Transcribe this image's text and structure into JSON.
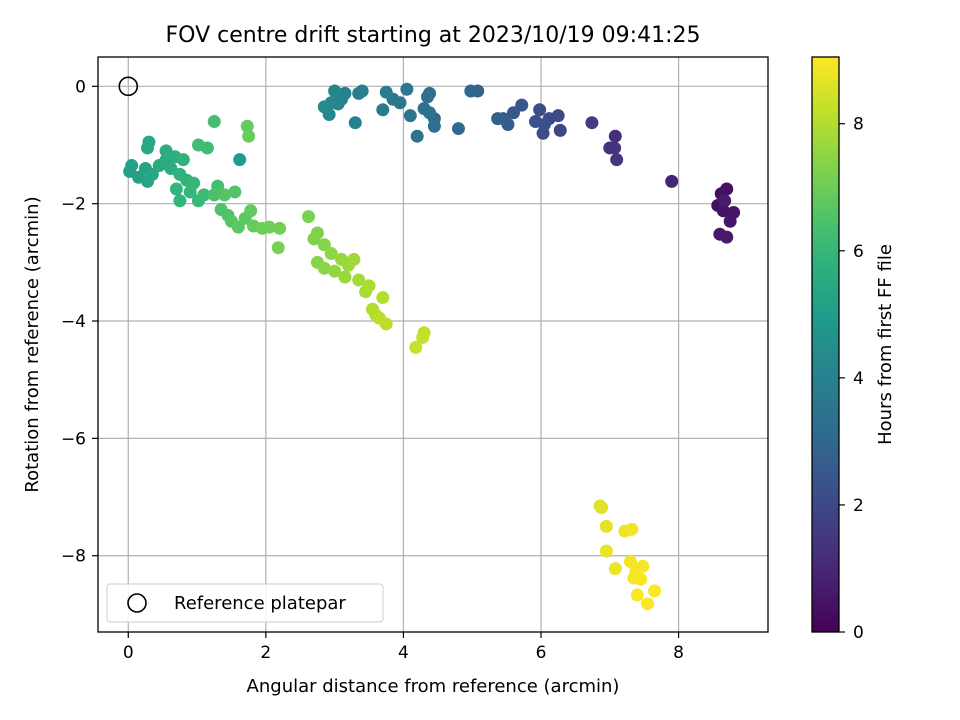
{
  "chart_data": {
    "type": "scatter",
    "title": "FOV centre drift starting at 2023/10/19 09:41:25",
    "xlabel": "Angular distance from reference (arcmin)",
    "ylabel": "Rotation from reference (arcmin)",
    "xlim": [
      -0.44,
      9.3
    ],
    "ylim": [
      -9.3,
      0.5
    ],
    "xticks": [
      0,
      2,
      4,
      6,
      8
    ],
    "yticks": [
      0,
      -2,
      -4,
      -6,
      -8
    ],
    "grid": true,
    "colorbar": {
      "label": "Hours from first FF file",
      "range": [
        0,
        9.05
      ],
      "ticks": [
        0,
        2,
        4,
        6,
        8
      ],
      "colormap": "viridis"
    },
    "legend": {
      "placement": "lower-left",
      "entries": [
        {
          "label": "Reference platepar",
          "marker": "open-circle"
        }
      ]
    },
    "reference_point": {
      "x": 0,
      "y": 0
    },
    "points": [
      [
        8.57,
        -2.03,
        0.3
      ],
      [
        8.62,
        -1.83,
        0.35
      ],
      [
        8.7,
        -1.75,
        0.4
      ],
      [
        8.65,
        -2.12,
        0.45
      ],
      [
        8.8,
        -2.15,
        0.5
      ],
      [
        8.75,
        -2.3,
        0.55
      ],
      [
        8.6,
        -2.52,
        0.6
      ],
      [
        8.7,
        -2.57,
        0.65
      ],
      [
        8.67,
        -1.95,
        0.7
      ],
      [
        7.9,
        -1.62,
        0.9
      ],
      [
        7.08,
        -0.85,
        1.2
      ],
      [
        7.0,
        -1.05,
        1.3
      ],
      [
        7.07,
        -1.05,
        1.35
      ],
      [
        7.1,
        -1.25,
        1.4
      ],
      [
        6.74,
        -0.62,
        1.6
      ],
      [
        6.28,
        -0.75,
        1.9
      ],
      [
        6.25,
        -0.5,
        2.0
      ],
      [
        6.12,
        -0.55,
        2.05
      ],
      [
        6.03,
        -0.8,
        2.1
      ],
      [
        5.98,
        -0.4,
        2.15
      ],
      [
        6.05,
        -0.65,
        2.2
      ],
      [
        5.92,
        -0.6,
        2.25
      ],
      [
        5.72,
        -0.32,
        2.4
      ],
      [
        5.6,
        -0.45,
        2.5
      ],
      [
        5.52,
        -0.65,
        2.6
      ],
      [
        5.45,
        -0.55,
        2.7
      ],
      [
        5.37,
        -0.55,
        2.75
      ],
      [
        5.08,
        -0.08,
        2.9
      ],
      [
        4.98,
        -0.08,
        3.0
      ],
      [
        4.8,
        -0.72,
        3.1
      ],
      [
        4.45,
        -0.55,
        3.2
      ],
      [
        4.45,
        -0.68,
        3.25
      ],
      [
        4.38,
        -0.12,
        3.3
      ],
      [
        4.35,
        -0.18,
        3.35
      ],
      [
        4.3,
        -0.38,
        3.4
      ],
      [
        4.38,
        -0.45,
        3.45
      ],
      [
        4.2,
        -0.85,
        3.5
      ],
      [
        4.1,
        -0.5,
        3.55
      ],
      [
        4.05,
        -0.05,
        3.6
      ],
      [
        3.95,
        -0.28,
        3.65
      ],
      [
        3.85,
        -0.22,
        3.7
      ],
      [
        3.75,
        -0.1,
        3.75
      ],
      [
        3.7,
        -0.4,
        3.8
      ],
      [
        3.4,
        -0.08,
        3.85
      ],
      [
        3.35,
        -0.12,
        3.9
      ],
      [
        3.3,
        -0.62,
        3.95
      ],
      [
        3.15,
        -0.12,
        4.0
      ],
      [
        3.1,
        -0.22,
        4.05
      ],
      [
        3.05,
        -0.3,
        4.1
      ],
      [
        3.0,
        -0.08,
        4.15
      ],
      [
        2.95,
        -0.28,
        4.2
      ],
      [
        2.92,
        -0.48,
        4.25
      ],
      [
        2.85,
        -0.35,
        4.3
      ],
      [
        1.62,
        -1.25,
        5.0
      ],
      [
        0.02,
        -1.45,
        5.1
      ],
      [
        0.05,
        -1.35,
        5.15
      ],
      [
        0.15,
        -1.55,
        5.2
      ],
      [
        0.25,
        -1.4,
        5.25
      ],
      [
        0.28,
        -1.62,
        5.3
      ],
      [
        0.35,
        -1.5,
        5.35
      ],
      [
        0.3,
        -0.95,
        5.4
      ],
      [
        0.28,
        -1.05,
        5.45
      ],
      [
        0.45,
        -1.35,
        5.5
      ],
      [
        0.55,
        -1.25,
        5.55
      ],
      [
        0.55,
        -1.1,
        5.6
      ],
      [
        0.62,
        -1.4,
        5.65
      ],
      [
        0.68,
        -1.2,
        5.7
      ],
      [
        0.75,
        -1.5,
        5.75
      ],
      [
        0.8,
        -1.25,
        5.8
      ],
      [
        0.85,
        -1.6,
        5.85
      ],
      [
        0.7,
        -1.75,
        5.9
      ],
      [
        0.75,
        -1.95,
        5.95
      ],
      [
        0.9,
        -1.8,
        6.0
      ],
      [
        0.95,
        -1.65,
        6.05
      ],
      [
        1.02,
        -1.95,
        6.1
      ],
      [
        1.1,
        -1.85,
        6.15
      ],
      [
        1.15,
        -1.05,
        6.2
      ],
      [
        1.02,
        -1.0,
        6.25
      ],
      [
        1.25,
        -0.6,
        6.3
      ],
      [
        1.3,
        -1.7,
        6.35
      ],
      [
        1.25,
        -1.85,
        6.4
      ],
      [
        1.35,
        -2.1,
        6.45
      ],
      [
        1.45,
        -2.2,
        6.5
      ],
      [
        1.55,
        -1.8,
        6.55
      ],
      [
        1.4,
        -1.85,
        6.6
      ],
      [
        1.5,
        -2.3,
        6.65
      ],
      [
        1.6,
        -2.4,
        6.7
      ],
      [
        1.7,
        -2.25,
        6.75
      ],
      [
        1.78,
        -2.12,
        6.8
      ],
      [
        1.82,
        -2.38,
        6.85
      ],
      [
        1.73,
        -0.68,
        6.9
      ],
      [
        1.75,
        -0.85,
        6.95
      ],
      [
        1.95,
        -2.42,
        7.0
      ],
      [
        2.05,
        -2.4,
        7.05
      ],
      [
        2.2,
        -2.42,
        7.1
      ],
      [
        2.18,
        -2.75,
        7.15
      ],
      [
        2.62,
        -2.22,
        7.2
      ],
      [
        2.75,
        -2.5,
        7.25
      ],
      [
        2.7,
        -2.6,
        7.3
      ],
      [
        2.85,
        -2.7,
        7.35
      ],
      [
        2.75,
        -3.0,
        7.4
      ],
      [
        2.85,
        -3.1,
        7.45
      ],
      [
        2.95,
        -2.85,
        7.5
      ],
      [
        3.0,
        -3.15,
        7.55
      ],
      [
        3.1,
        -2.95,
        7.6
      ],
      [
        3.15,
        -3.25,
        7.65
      ],
      [
        3.2,
        -3.05,
        7.7
      ],
      [
        3.28,
        -2.95,
        7.75
      ],
      [
        3.35,
        -3.3,
        7.8
      ],
      [
        3.45,
        -3.5,
        7.85
      ],
      [
        3.5,
        -3.4,
        7.9
      ],
      [
        3.55,
        -3.8,
        7.95
      ],
      [
        3.6,
        -3.9,
        8.0
      ],
      [
        3.7,
        -3.6,
        8.05
      ],
      [
        3.65,
        -3.95,
        8.1
      ],
      [
        3.75,
        -4.05,
        8.15
      ],
      [
        4.3,
        -4.2,
        8.2
      ],
      [
        4.28,
        -4.28,
        8.25
      ],
      [
        4.18,
        -4.45,
        8.3
      ],
      [
        6.86,
        -7.15,
        8.6
      ],
      [
        6.88,
        -7.18,
        8.65
      ],
      [
        6.95,
        -7.5,
        8.7
      ],
      [
        6.95,
        -7.92,
        8.75
      ],
      [
        7.08,
        -8.22,
        8.8
      ],
      [
        7.22,
        -7.58,
        8.85
      ],
      [
        7.32,
        -7.55,
        8.88
      ],
      [
        7.3,
        -8.1,
        8.9
      ],
      [
        7.38,
        -8.25,
        8.92
      ],
      [
        7.48,
        -8.18,
        8.94
      ],
      [
        7.35,
        -8.38,
        8.96
      ],
      [
        7.45,
        -8.4,
        8.98
      ],
      [
        7.4,
        -8.67,
        9.0
      ],
      [
        7.55,
        -8.82,
        9.02
      ],
      [
        7.65,
        -8.6,
        9.04
      ]
    ]
  }
}
